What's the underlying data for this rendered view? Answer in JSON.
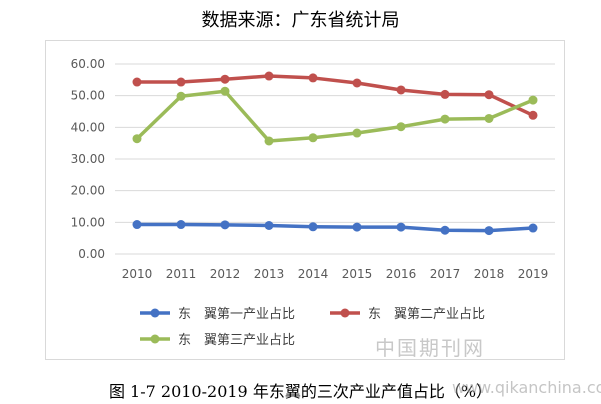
{
  "header": {
    "source_text": "数据来源：广东省统计局"
  },
  "caption": "图 1-7 2010-2019 年东翼的三次产业产值占比（%）",
  "watermark": {
    "cn": "中国期刊网",
    "url": "www.qikanchina.com"
  },
  "chart_data": {
    "type": "line",
    "title": "",
    "xlabel": "",
    "ylabel": "",
    "x": [
      "2010",
      "2011",
      "2012",
      "2013",
      "2014",
      "2015",
      "2016",
      "2017",
      "2018",
      "2019"
    ],
    "ylim": [
      0,
      60
    ],
    "yticks": [
      "0.00",
      "10.00",
      "20.00",
      "30.00",
      "40.00",
      "50.00",
      "60.00"
    ],
    "grid": true,
    "legend_position": "bottom",
    "series": [
      {
        "name": "东　翼第一产业占比",
        "color": "#4472c4",
        "values": [
          9.3,
          9.3,
          9.2,
          9.0,
          8.6,
          8.5,
          8.5,
          7.5,
          7.4,
          8.2
        ]
      },
      {
        "name": "东　翼第二产业占比",
        "color": "#c0504d",
        "values": [
          54.3,
          54.3,
          55.2,
          56.2,
          55.6,
          54.0,
          51.8,
          50.4,
          50.3,
          43.8
        ]
      },
      {
        "name": "东　翼第三产业占比",
        "color": "#9bbb59",
        "values": [
          36.4,
          49.8,
          51.4,
          35.7,
          36.7,
          38.2,
          40.2,
          42.6,
          42.8,
          48.6
        ]
      }
    ]
  }
}
